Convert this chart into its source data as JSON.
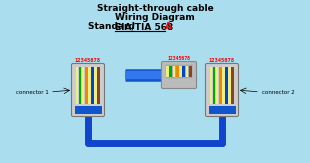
{
  "bg_color": "#aaddee",
  "title_line1": "Straight-through cable",
  "title_line2": "Wiring Diagram",
  "title_line3_normal": "Standard ",
  "title_line3_underline": "EIA/TIA 568",
  "title_line3_red": "A",
  "wire_colors": [
    "#eeee88",
    "#00aa00",
    "#eeee88",
    "#ee8800",
    "#eeee88",
    "#0044cc",
    "#eeee88",
    "#884422"
  ],
  "pin_numbers": "12345678",
  "connector1_label": "connector 1",
  "connector2_label": "connector 2",
  "cable_color": "#1144cc",
  "connector_body_color": "#cccccc",
  "connector_pin_color": "#aaaaaa",
  "connector_blue_color": "#1155cc"
}
